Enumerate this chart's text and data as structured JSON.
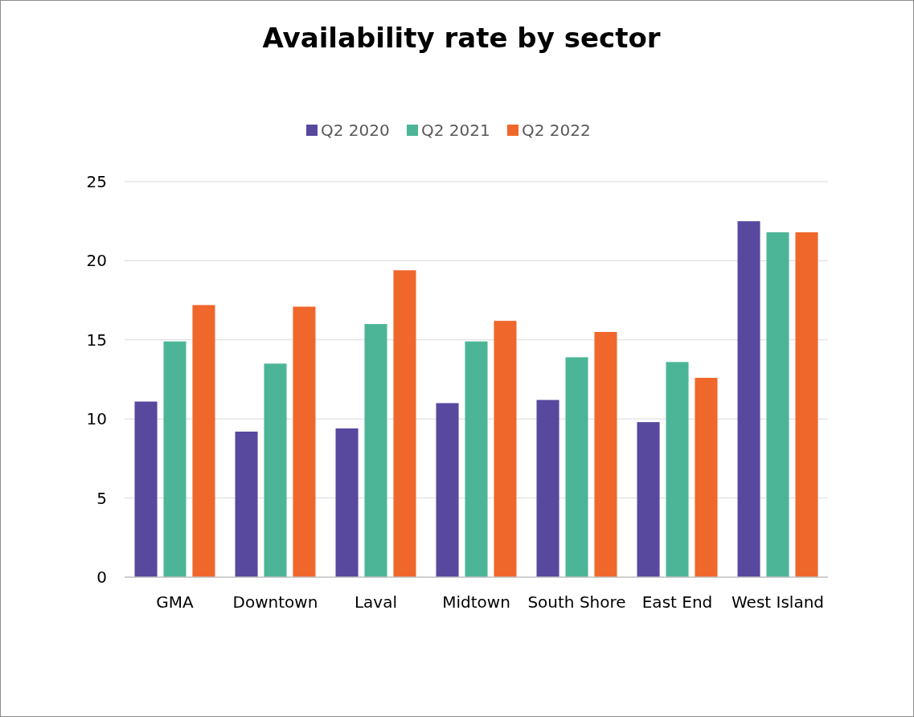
{
  "chart_data": {
    "type": "bar",
    "title": "Availability rate by sector",
    "categories": [
      "GMA",
      "Downtown",
      "Laval",
      "Midtown",
      "South Shore",
      "East End",
      "West Island"
    ],
    "series": [
      {
        "name": "Q2 2020",
        "color": "#58489e",
        "values": [
          11.1,
          9.2,
          9.4,
          11.0,
          11.2,
          9.8,
          22.5
        ]
      },
      {
        "name": "Q2 2021",
        "color": "#4db597",
        "values": [
          14.9,
          13.5,
          16.0,
          14.9,
          13.9,
          13.6,
          21.8
        ]
      },
      {
        "name": "Q2 2022",
        "color": "#f0672b",
        "values": [
          17.2,
          17.1,
          19.4,
          16.2,
          15.5,
          12.6,
          21.8
        ]
      }
    ],
    "ylim": [
      0,
      25
    ],
    "yticks": [
      0,
      5,
      10,
      15,
      20,
      25
    ],
    "grid": "y",
    "legend": "top"
  }
}
